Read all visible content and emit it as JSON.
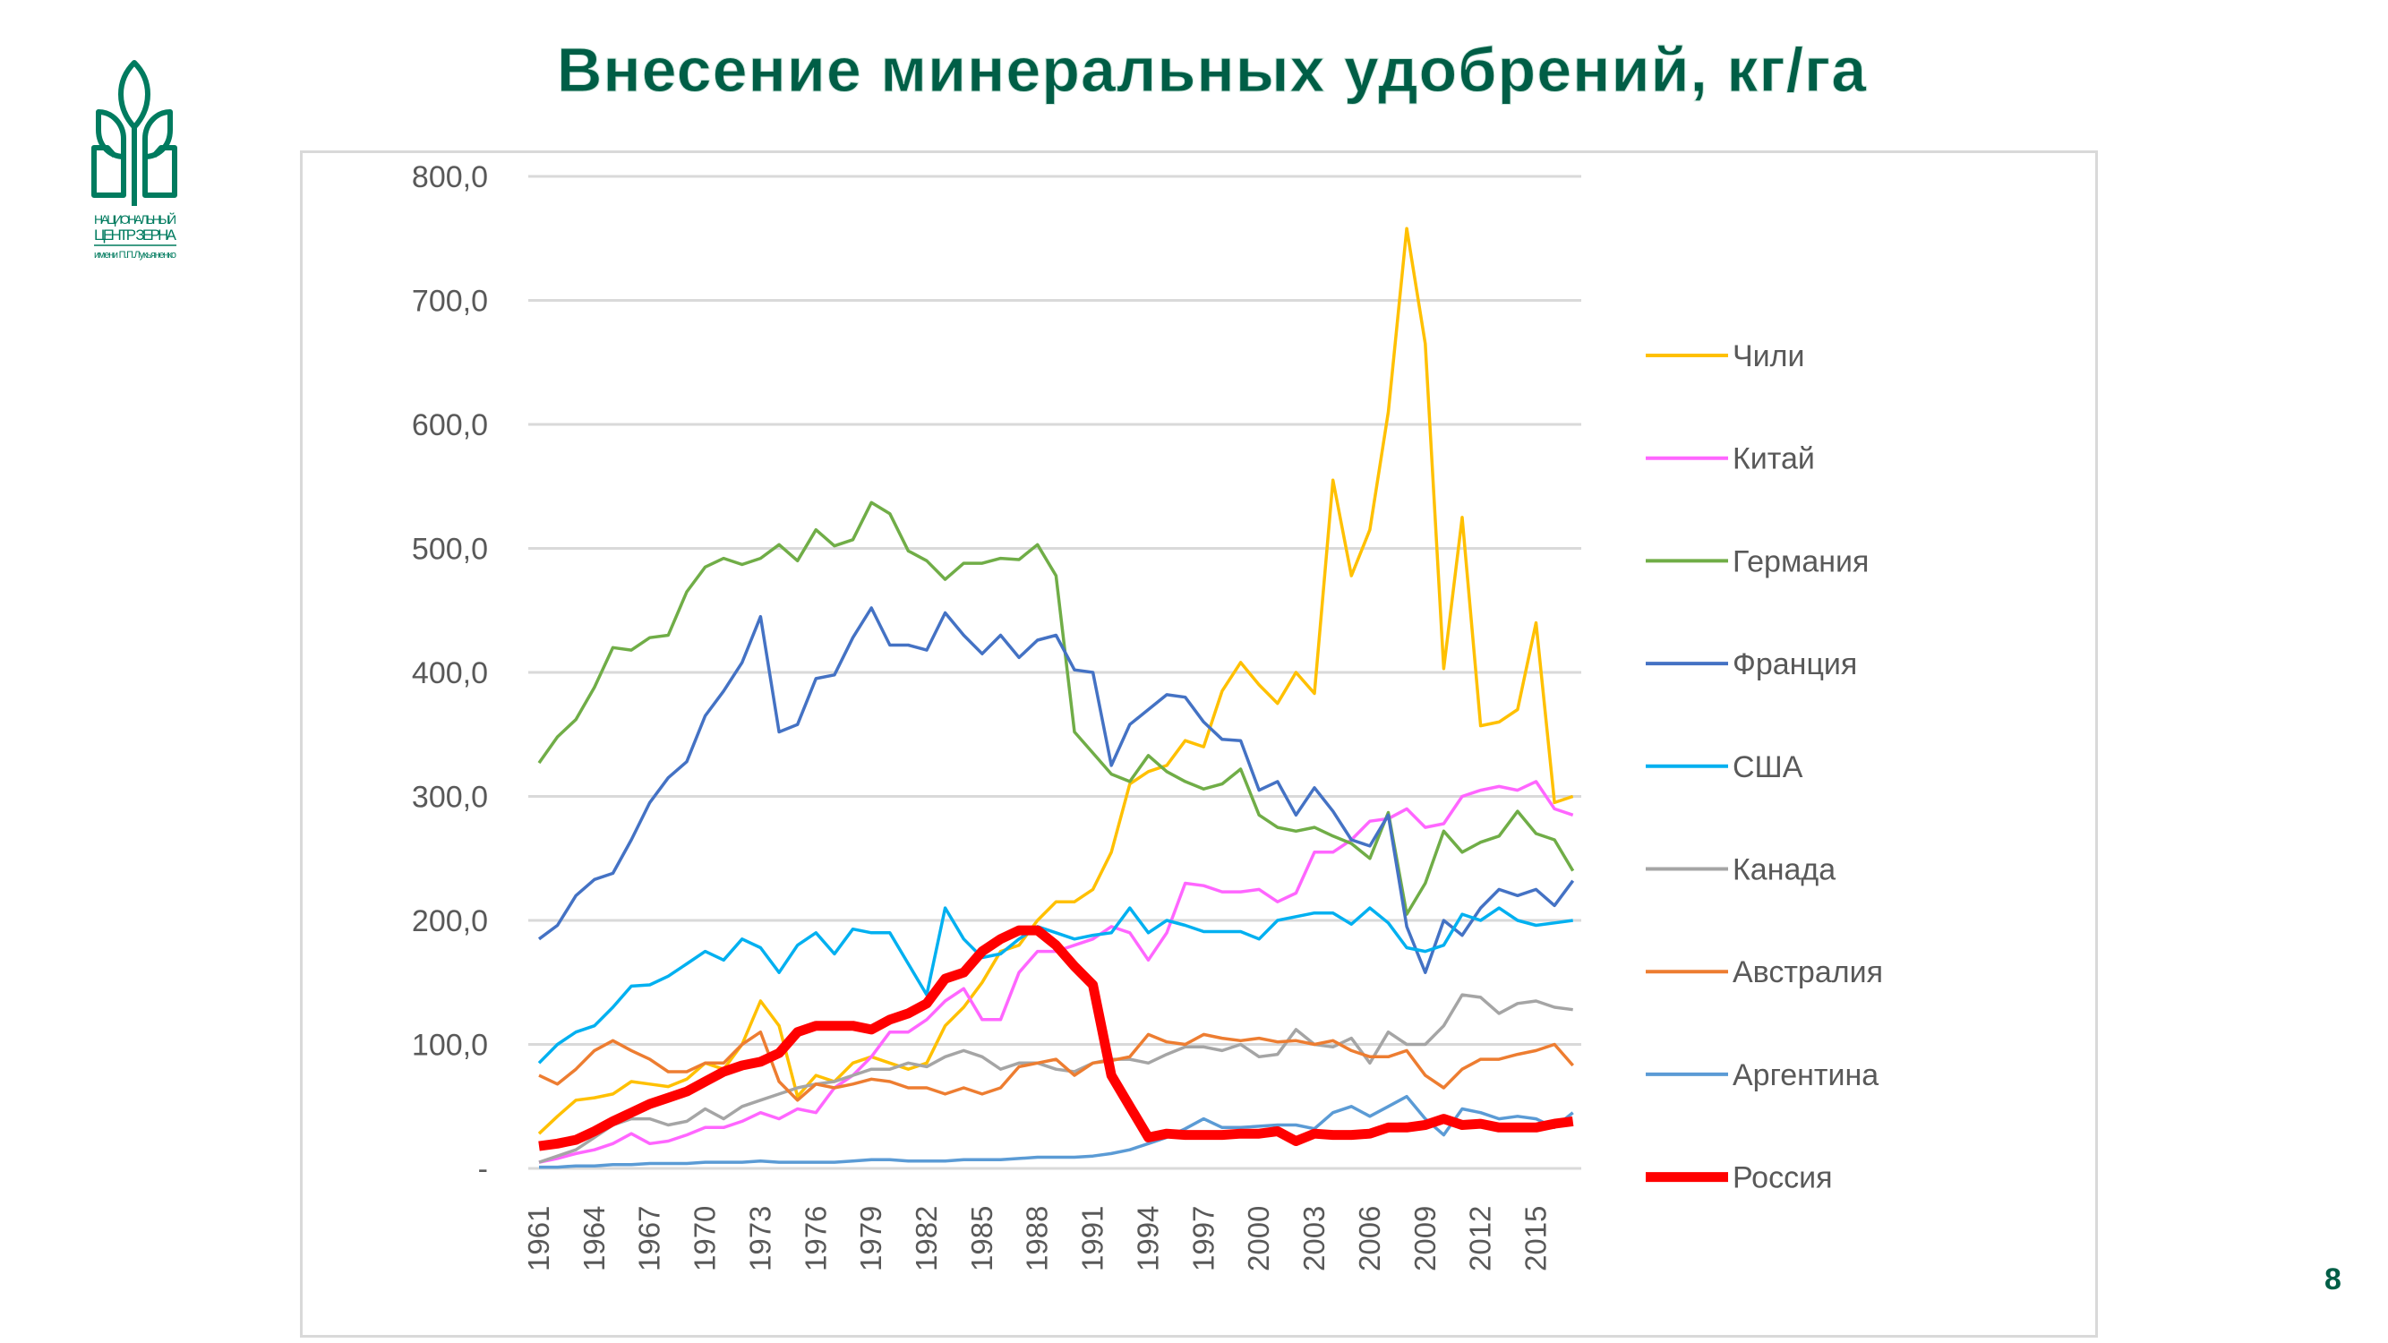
{
  "header": {
    "title": "Внесение минеральных удобрений, кг/га",
    "page_number": "8"
  },
  "logo": {
    "line1": "НАЦИОНАЛЬНЫЙ",
    "line2": "ЦЕНТР ЗЕРНА",
    "line3": "имени П.П.Лукьяненко",
    "color": "#007b5f"
  },
  "chart_data": {
    "type": "line",
    "title": "Внесение минеральных удобрений, кг/га",
    "xlabel": "",
    "ylabel": "",
    "ylim": [
      0,
      800
    ],
    "grid": true,
    "legend": "right",
    "y_ticks": [
      "-",
      "100,0",
      "200,0",
      "300,0",
      "400,0",
      "500,0",
      "600,0",
      "700,0",
      "800,0"
    ],
    "x_tick_labels": [
      "1961",
      "1964",
      "1967",
      "1970",
      "1973",
      "1976",
      "1979",
      "1982",
      "1985",
      "1988",
      "1991",
      "1994",
      "1997",
      "2000",
      "2003",
      "2006",
      "2009",
      "2012",
      "2015"
    ],
    "x_start": 1961,
    "series": [
      {
        "name": "Чили",
        "color": "#ffc000",
        "width": 1,
        "values": [
          28,
          42,
          55,
          57,
          60,
          70,
          68,
          66,
          72,
          85,
          80,
          100,
          135,
          115,
          58,
          75,
          70,
          85,
          90,
          85,
          80,
          85,
          115,
          130,
          150,
          175,
          180,
          200,
          215,
          215,
          225,
          255,
          310,
          320,
          325,
          345,
          340,
          385,
          408,
          390,
          375,
          400,
          383,
          555,
          478,
          515,
          610,
          758,
          665,
          403,
          525,
          357,
          360,
          370,
          440,
          295,
          300
        ]
      },
      {
        "name": "Китай",
        "color": "#ff66ff",
        "width": 1,
        "values": [
          5,
          8,
          12,
          15,
          20,
          28,
          20,
          22,
          27,
          33,
          33,
          38,
          45,
          40,
          48,
          45,
          65,
          75,
          90,
          110,
          110,
          120,
          135,
          145,
          120,
          120,
          158,
          175,
          175,
          180,
          185,
          195,
          190,
          168,
          190,
          230,
          228,
          223,
          223,
          225,
          215,
          222,
          255,
          255,
          265,
          280,
          282,
          290,
          275,
          278,
          300,
          305,
          308,
          305,
          312,
          290,
          285
        ]
      },
      {
        "name": "Германия",
        "color": "#70ad47",
        "width": 1,
        "values": [
          327,
          348,
          362,
          388,
          420,
          418,
          428,
          430,
          465,
          485,
          492,
          487,
          492,
          503,
          490,
          515,
          502,
          507,
          537,
          528,
          498,
          490,
          475,
          488,
          488,
          492,
          491,
          503,
          478,
          352,
          335,
          318,
          312,
          333,
          320,
          312,
          306,
          310,
          322,
          285,
          275,
          272,
          275,
          268,
          262,
          250,
          287,
          205,
          230,
          272,
          255,
          263,
          268,
          288,
          270,
          265,
          240
        ]
      },
      {
        "name": "Франция",
        "color": "#4472c4",
        "width": 1,
        "values": [
          185,
          196,
          220,
          233,
          238,
          265,
          295,
          315,
          328,
          365,
          385,
          408,
          445,
          352,
          358,
          395,
          398,
          428,
          452,
          422,
          422,
          418,
          448,
          430,
          415,
          430,
          412,
          426,
          430,
          402,
          400,
          325,
          358,
          370,
          382,
          380,
          360,
          346,
          345,
          305,
          312,
          285,
          307,
          288,
          265,
          260,
          285,
          195,
          158,
          200,
          188,
          210,
          225,
          220,
          225,
          212,
          232
        ]
      },
      {
        "name": "США",
        "color": "#00b0f0",
        "width": 1,
        "values": [
          85,
          100,
          110,
          115,
          130,
          147,
          148,
          155,
          165,
          175,
          168,
          185,
          178,
          158,
          180,
          190,
          173,
          193,
          190,
          190,
          165,
          140,
          210,
          185,
          170,
          173,
          185,
          195,
          190,
          185,
          188,
          190,
          210,
          190,
          200,
          196,
          191,
          191,
          191,
          185,
          200,
          203,
          206,
          206,
          197,
          210,
          198,
          178,
          175,
          180,
          205,
          200,
          210,
          200,
          196,
          198,
          200
        ]
      },
      {
        "name": "Канада",
        "color": "#a5a5a5",
        "width": 1,
        "values": [
          5,
          10,
          15,
          25,
          35,
          40,
          40,
          35,
          38,
          48,
          40,
          50,
          55,
          60,
          65,
          68,
          70,
          75,
          80,
          80,
          85,
          82,
          90,
          95,
          90,
          80,
          85,
          85,
          80,
          78,
          85,
          88,
          88,
          85,
          92,
          98,
          98,
          95,
          100,
          90,
          92,
          112,
          100,
          98,
          105,
          85,
          110,
          100,
          100,
          115,
          140,
          138,
          125,
          133,
          135,
          130,
          128
        ]
      },
      {
        "name": "Австралия",
        "color": "#ed7d31",
        "width": 1,
        "values": [
          75,
          68,
          80,
          95,
          103,
          95,
          88,
          78,
          78,
          85,
          85,
          100,
          110,
          70,
          55,
          68,
          65,
          68,
          72,
          70,
          65,
          65,
          60,
          65,
          60,
          65,
          82,
          85,
          88,
          75,
          85,
          87,
          90,
          108,
          102,
          100,
          108,
          105,
          103,
          105,
          102,
          103,
          100,
          103,
          95,
          90,
          90,
          95,
          75,
          65,
          80,
          88,
          88,
          92,
          95,
          100,
          83
        ]
      },
      {
        "name": "Аргентина",
        "color": "#5b9bd5",
        "width": 1,
        "values": [
          1,
          1,
          2,
          2,
          3,
          3,
          4,
          4,
          4,
          5,
          5,
          5,
          6,
          5,
          5,
          5,
          5,
          6,
          7,
          7,
          6,
          6,
          6,
          7,
          7,
          7,
          8,
          9,
          9,
          9,
          10,
          12,
          15,
          20,
          25,
          32,
          40,
          33,
          33,
          34,
          35,
          35,
          32,
          45,
          50,
          42,
          50,
          58,
          40,
          27,
          48,
          45,
          40,
          42,
          40,
          33,
          45
        ]
      },
      {
        "name": "Россия",
        "color": "#ff0000",
        "width": 3,
        "values": [
          18,
          20,
          23,
          30,
          38,
          45,
          52,
          57,
          62,
          70,
          78,
          83,
          86,
          93,
          110,
          115,
          115,
          115,
          112,
          120,
          125,
          133,
          153,
          158,
          175,
          185,
          192,
          192,
          180,
          163,
          148,
          75,
          50,
          25,
          28,
          27,
          27,
          27,
          28,
          28,
          30,
          22,
          28,
          27,
          27,
          28,
          33,
          33,
          35,
          40,
          35,
          36,
          33,
          33,
          33,
          36,
          38
        ]
      }
    ]
  }
}
